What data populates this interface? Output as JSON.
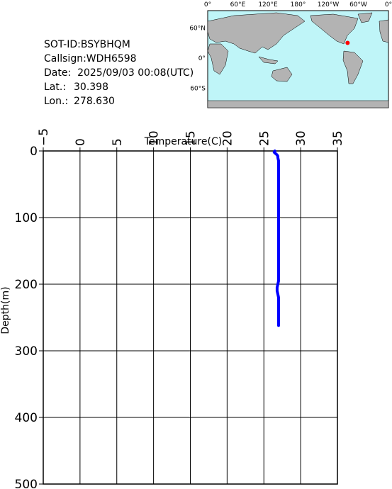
{
  "header": {
    "sot_id": "SOT-ID:BSYBHQM",
    "callsign": "Callsign:WDH6598",
    "date": "Date:  2025/09/03 00:08(UTC)",
    "lat_label": "Lat.:",
    "lat": "30.398",
    "lon_label": "Lon.:",
    "lon": "278.630"
  },
  "map": {
    "lon_labels": [
      "0°",
      "60°E",
      "120°E",
      "180°",
      "120°W",
      "60°W",
      "0°"
    ],
    "lat_labels": [
      "60°N",
      "0°",
      "60°S"
    ]
  },
  "chart_data": {
    "type": "line",
    "x_label": "Temperature(C)",
    "y_label": "Depth(m)",
    "color": "#0000ff",
    "depth": [
      0,
      2,
      4,
      6,
      8,
      10,
      15,
      20,
      50,
      100,
      150,
      195,
      200,
      205,
      210,
      215,
      220,
      250,
      262
    ],
    "values": [
      26.5,
      26.4,
      26.6,
      26.8,
      26.9,
      26.9,
      27.0,
      27.0,
      27.0,
      27.0,
      27.0,
      27.0,
      26.9,
      26.8,
      26.8,
      26.9,
      27.0,
      27.0,
      27.0
    ],
    "xlim": [
      -5,
      35
    ],
    "xticks": [
      {
        "value": -5,
        "label": "−5"
      },
      0,
      5,
      10,
      15,
      20,
      25,
      30,
      35
    ],
    "ylim": [
      0,
      500
    ],
    "yticks": [
      0,
      100,
      200,
      300,
      400,
      500
    ],
    "grid": true
  }
}
